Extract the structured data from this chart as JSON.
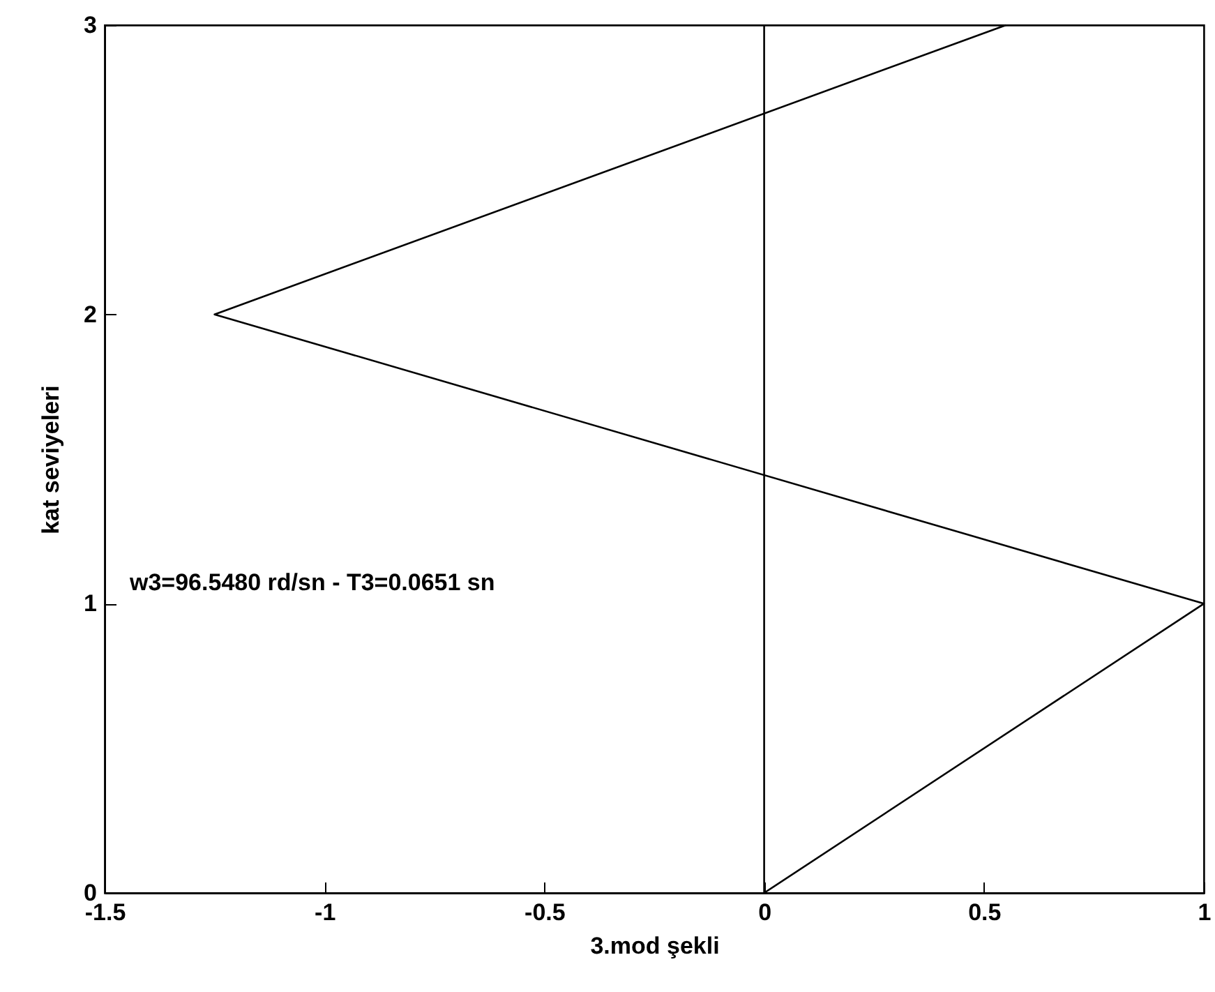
{
  "chart_data": {
    "type": "line",
    "xlabel": "3.mod şekli",
    "ylabel": "kat seviyeleri",
    "series": [
      {
        "color": "#000000",
        "x": [
          0,
          1,
          -1.25,
          0.55
        ],
        "values": [
          0,
          1,
          2,
          3
        ]
      }
    ],
    "xlim": [
      -1.5,
      1
    ],
    "xticks": [
      -1.5,
      -1,
      -0.5,
      0,
      0.5,
      1
    ],
    "ylim": [
      0,
      3
    ],
    "yticks": [
      0,
      1,
      2,
      3
    ],
    "ref_lines": [
      {
        "axis": "x",
        "value": 0,
        "color": "#000000"
      }
    ],
    "annotations": [
      "w3=96.5480 rd/sn - T3=0.0651 sn"
    ],
    "grid": false,
    "marker": "none",
    "line_style": "solid"
  }
}
